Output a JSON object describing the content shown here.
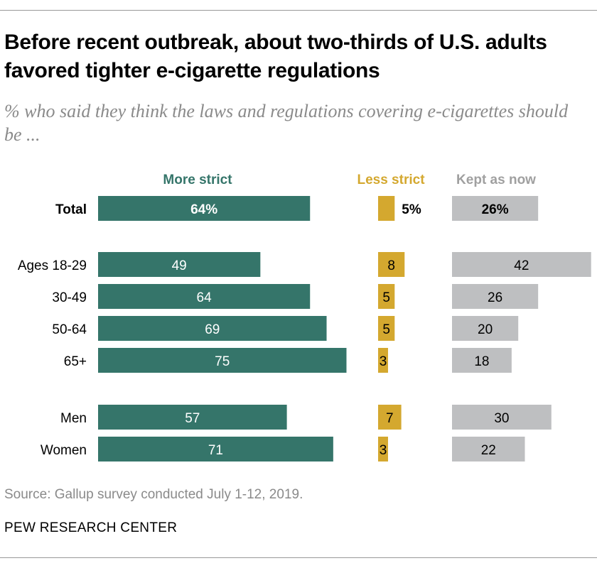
{
  "title": "Before recent outbreak, about two-thirds of U.S. adults favored tighter e-cigarette regulations",
  "subtitle": "% who said they think the laws and regulations covering e-cigarettes should be ...",
  "source": "Source: Gallup survey conducted July 1-12, 2019.",
  "credit": "PEW RESEARCH CENTER",
  "colors": {
    "more_strict": "#35756a",
    "less_strict": "#d4a82f",
    "kept_as_now": "#bebfc1"
  },
  "chart_data": {
    "type": "bar",
    "orientation": "horizontal",
    "categories": [
      "Total",
      "Ages 18-29",
      "30-49",
      "50-64",
      "65+",
      "Men",
      "Women"
    ],
    "series": [
      {
        "name": "More strict",
        "values": [
          64,
          49,
          64,
          69,
          75,
          57,
          71
        ]
      },
      {
        "name": "Less strict",
        "values": [
          5,
          8,
          5,
          5,
          3,
          7,
          3
        ]
      },
      {
        "name": "Kept as now",
        "values": [
          26,
          42,
          26,
          20,
          18,
          30,
          22
        ]
      }
    ],
    "total_value_labels": [
      "64%",
      "5%",
      "26%"
    ],
    "unit": "%"
  }
}
